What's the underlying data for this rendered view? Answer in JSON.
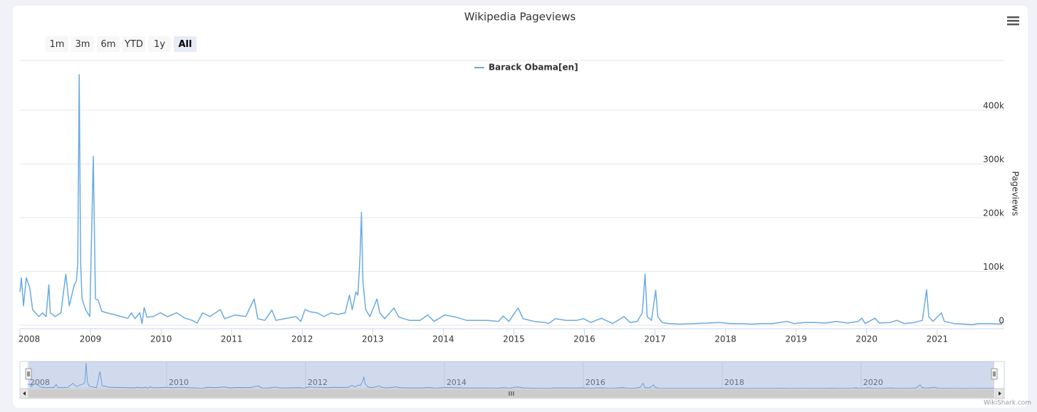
{
  "chart_data": {
    "type": "line",
    "title": "Wikipedia Pageviews",
    "range_buttons": [
      "1m",
      "3m",
      "6m",
      "YTD",
      "1y",
      "All"
    ],
    "selected_button": 5,
    "y_label": "Pageviews",
    "credits": "WikiShark.com",
    "x": [
      2008.0,
      2008.02,
      2008.05,
      2008.09,
      2008.14,
      2008.18,
      2008.22,
      2008.27,
      2008.32,
      2008.37,
      2008.41,
      2008.43,
      2008.5,
      2008.58,
      2008.65,
      2008.7,
      2008.77,
      2008.8,
      2008.82,
      2008.84,
      2008.86,
      2008.88,
      2008.93,
      2008.99,
      2009.04,
      2009.07,
      2009.11,
      2009.16,
      2009.23,
      2009.33,
      2009.43,
      2009.53,
      2009.58,
      2009.63,
      2009.7,
      2009.73,
      2009.76,
      2009.8,
      2009.89,
      2009.99,
      2010.09,
      2010.22,
      2010.34,
      2010.44,
      2010.51,
      2010.59,
      2010.69,
      2010.84,
      2010.9,
      2011.05,
      2011.2,
      2011.32,
      2011.37,
      2011.47,
      2011.57,
      2011.63,
      2011.75,
      2011.91,
      2011.98,
      2012.04,
      2012.11,
      2012.21,
      2012.31,
      2012.41,
      2012.51,
      2012.61,
      2012.67,
      2012.71,
      2012.76,
      2012.79,
      2012.82,
      2012.84,
      2012.86,
      2012.9,
      2012.96,
      2013.06,
      2013.1,
      2013.17,
      2013.3,
      2013.37,
      2013.52,
      2013.67,
      2013.78,
      2013.87,
      2014.02,
      2014.18,
      2014.33,
      2014.48,
      2014.63,
      2014.78,
      2014.85,
      2014.93,
      2015.06,
      2015.13,
      2015.29,
      2015.44,
      2015.49,
      2015.59,
      2015.74,
      2015.89,
      2015.99,
      2016.09,
      2016.24,
      2016.4,
      2016.56,
      2016.65,
      2016.75,
      2016.82,
      2016.86,
      2016.89,
      2016.95,
      2017.01,
      2017.04,
      2017.1,
      2017.2,
      2017.35,
      2017.56,
      2017.76,
      2017.91,
      2018.06,
      2018.21,
      2018.36,
      2018.51,
      2018.67,
      2018.77,
      2018.87,
      2018.97,
      2019.12,
      2019.27,
      2019.42,
      2019.57,
      2019.73,
      2019.88,
      2019.93,
      2019.98,
      2020.12,
      2020.18,
      2020.33,
      2020.43,
      2020.53,
      2020.68,
      2020.79,
      2020.85,
      2020.88,
      2020.94,
      2021.06,
      2021.1,
      2021.24,
      2021.39,
      2021.49,
      2021.59,
      2021.74,
      2021.92
    ],
    "series": [
      {
        "name": "Barack Obama[en]",
        "color": "#6aaae2",
        "values": [
          62000,
          88000,
          36000,
          88000,
          69000,
          29000,
          23000,
          16000,
          23000,
          16000,
          75000,
          23000,
          16000,
          23000,
          95000,
          36000,
          75000,
          82000,
          115000,
          466000,
          115000,
          49000,
          29000,
          16000,
          314000,
          49000,
          46000,
          26000,
          23000,
          20000,
          16000,
          13000,
          23000,
          12000,
          23000,
          3000,
          33000,
          15000,
          16000,
          23000,
          16000,
          23000,
          13000,
          9000,
          4000,
          23000,
          16000,
          29000,
          12000,
          19000,
          16000,
          49000,
          12000,
          9000,
          28000,
          9000,
          12000,
          16000,
          7000,
          29000,
          25000,
          23000,
          16000,
          23000,
          20000,
          23000,
          56000,
          29000,
          62000,
          56000,
          128000,
          210000,
          82000,
          29000,
          16000,
          49000,
          23000,
          12000,
          32000,
          15000,
          9000,
          9000,
          19000,
          7000,
          19000,
          15000,
          9000,
          9000,
          9000,
          7000,
          17000,
          7000,
          32000,
          12000,
          7000,
          5000,
          3000,
          12000,
          9000,
          9000,
          12000,
          5000,
          13000,
          3000,
          16000,
          5000,
          7000,
          23000,
          95000,
          16000,
          9000,
          65000,
          16000,
          5000,
          3000,
          2000,
          3000,
          4000,
          5000,
          3000,
          3000,
          2000,
          3000,
          3000,
          5000,
          7000,
          3000,
          5000,
          5000,
          4000,
          7000,
          4000,
          7000,
          13000,
          3000,
          13000,
          4000,
          5000,
          9000,
          3000,
          5000,
          9000,
          66000,
          16000,
          7000,
          23000,
          7000,
          3000,
          2000,
          1000,
          3000,
          3000,
          2000
        ]
      }
    ],
    "xlim": [
      2008,
      2021.95
    ],
    "xticks": [
      2008,
      2009,
      2010,
      2011,
      2012,
      2013,
      2014,
      2015,
      2016,
      2017,
      2018,
      2019,
      2020,
      2021
    ],
    "ylim": [
      0,
      495000
    ],
    "yticks": [
      0,
      {
        "value": 100000,
        "label": "100k"
      },
      {
        "value": 200000,
        "label": "200k"
      },
      {
        "value": 300000,
        "label": "300k"
      },
      {
        "value": 400000,
        "label": "400k"
      }
    ],
    "grid": true,
    "legend": "top",
    "navigator": {
      "xlim": [
        2008,
        2021.95
      ],
      "xticks": [
        2008,
        2010,
        2012,
        2014,
        2016,
        2018,
        2020
      ]
    }
  }
}
